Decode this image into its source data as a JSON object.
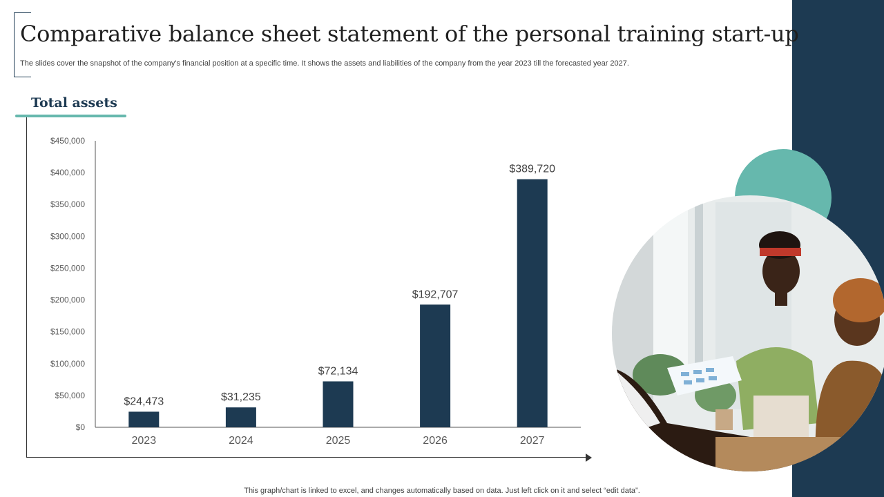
{
  "slide": {
    "title": "Comparative balance sheet statement of the personal training start-up",
    "subtitle": "The slides cover the snapshot of the company's financial position at a specific time. It shows the assets and liabilities of the company from the year 2023 till the forecasted year 2027.",
    "section_heading": "Total assets",
    "footnote": "This graph/chart is linked to excel,  and changes automatically based on data. Just left click on it and select “edit data”."
  },
  "colors": {
    "navy": "#1d3a52",
    "teal": "#66b8ad",
    "bar": "#1d3a52"
  },
  "chart_data": {
    "type": "bar",
    "categories": [
      "2023",
      "2024",
      "2025",
      "2026",
      "2027"
    ],
    "values": [
      24473,
      31235,
      72134,
      192707,
      389720
    ],
    "data_labels": [
      "$24,473",
      "$31,235",
      "$72,134",
      "$192,707",
      "$389,720"
    ],
    "ylim": [
      0,
      450000
    ],
    "yticks": [
      0,
      50000,
      100000,
      150000,
      200000,
      250000,
      300000,
      350000,
      400000,
      450000
    ],
    "ytick_labels": [
      "$0",
      "$50,000",
      "$100,000",
      "$150,000",
      "$200,000",
      "$250,000",
      "$300,000",
      "$350,000",
      "$400,000",
      "$450,000"
    ],
    "grid": false,
    "legend": "none"
  },
  "photo": {
    "description_icon": "people-meeting-photo"
  }
}
